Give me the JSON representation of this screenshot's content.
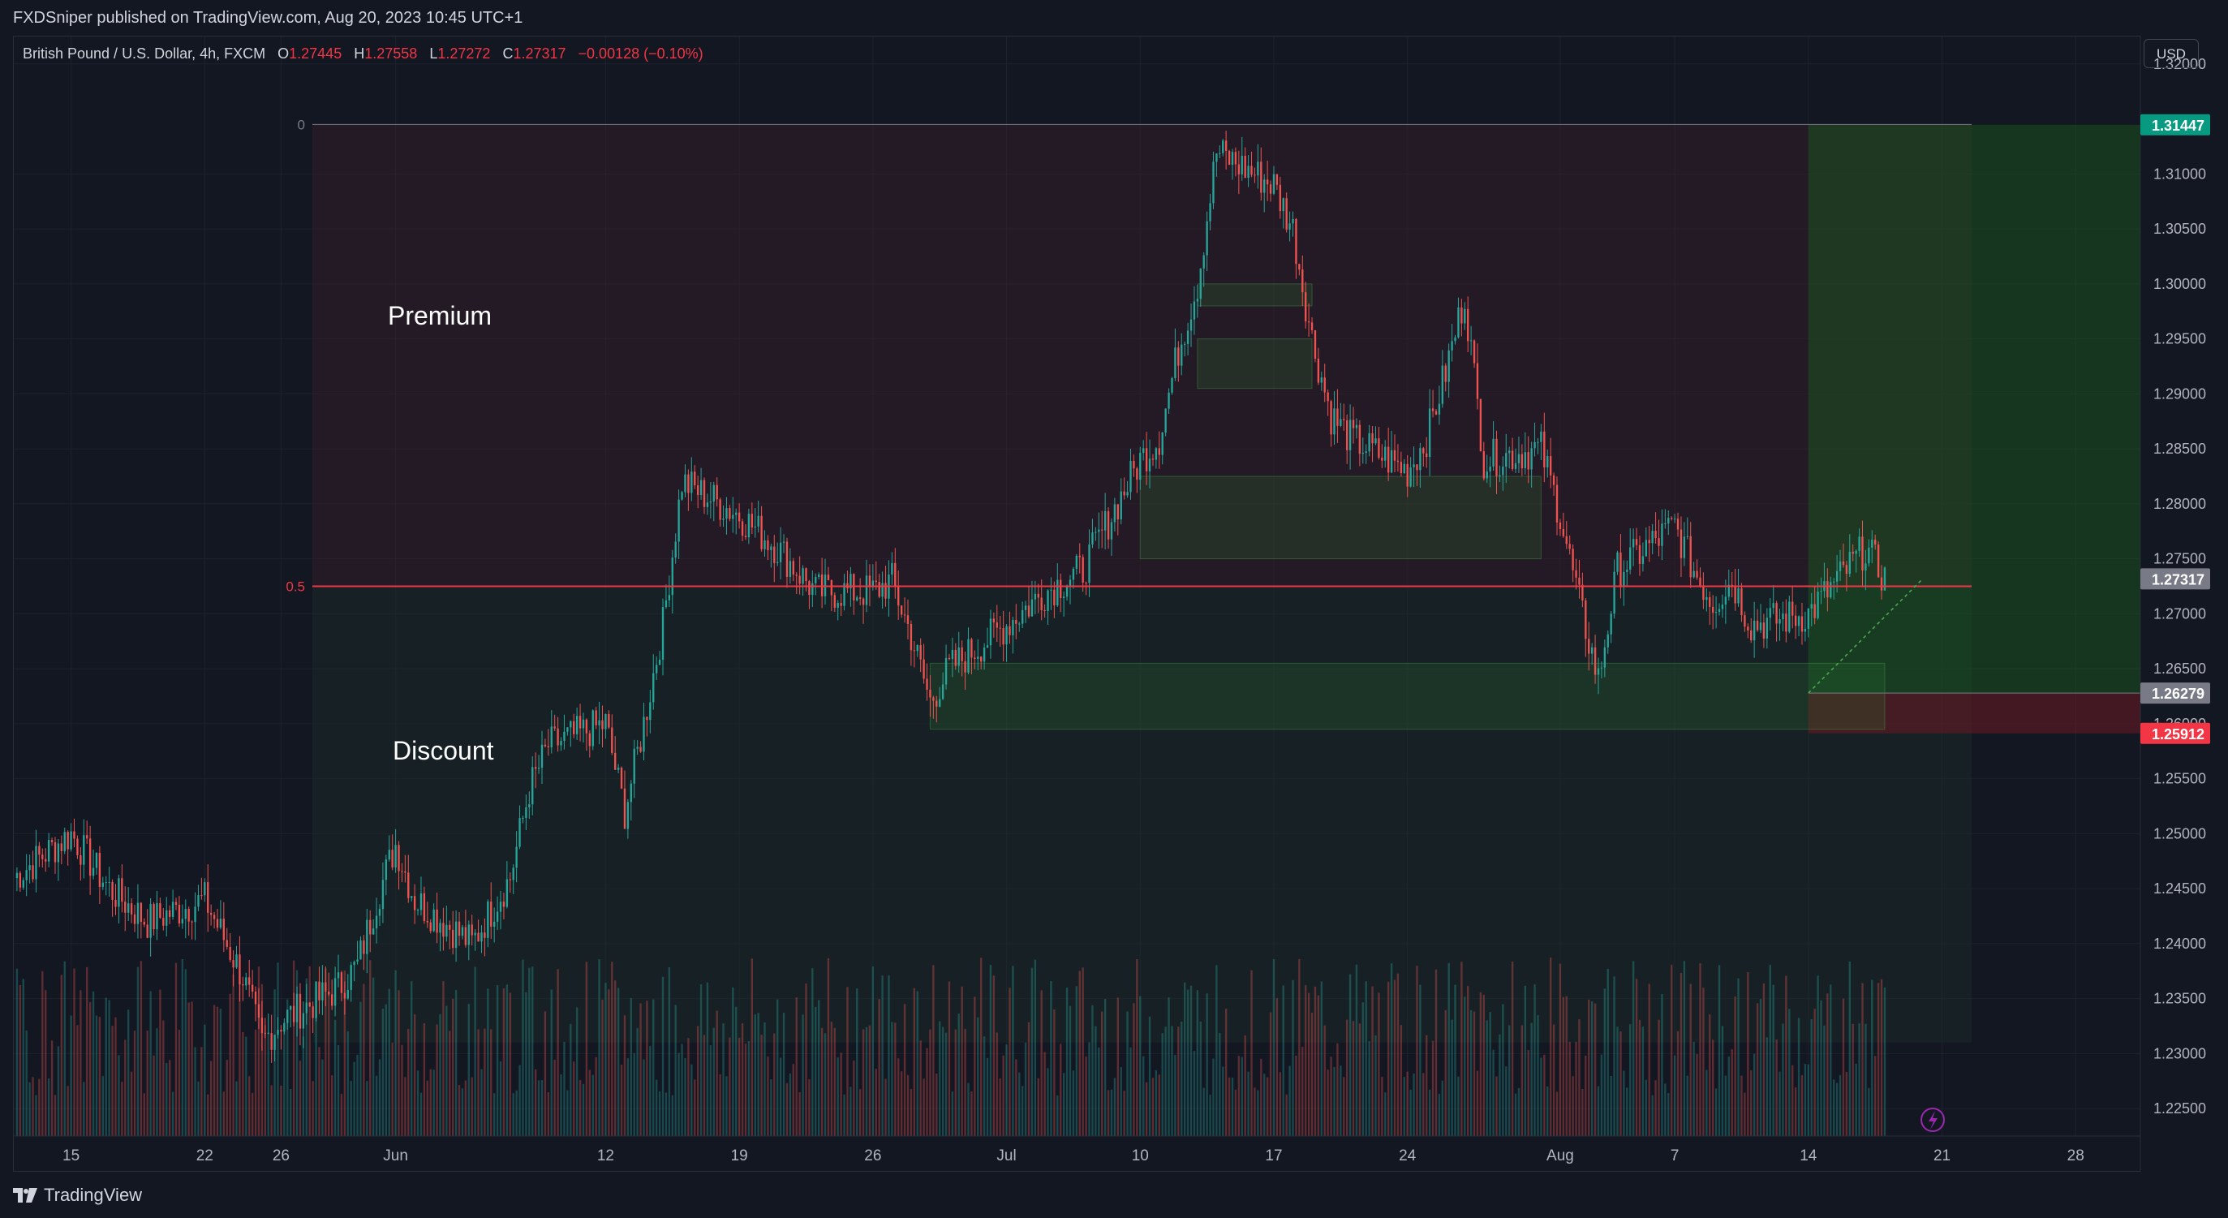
{
  "header": {
    "published_text": "FXDSniper published on TradingView.com, Aug 20, 2023 10:45 UTC+1"
  },
  "symbol": {
    "title": "British Pound / U.S. Dollar, 4h, FXCM",
    "open_label": "O",
    "open": "1.27445",
    "high_label": "H",
    "high": "1.27558",
    "low_label": "L",
    "low": "1.27272",
    "close_label": "C",
    "close": "1.27317",
    "change": "−0.00128 (−0.10%)"
  },
  "currency_button": "USD",
  "annotations": {
    "premium": "Premium",
    "discount": "Discount",
    "fib_top": "0",
    "fib_mid": "0.5"
  },
  "price_axis": {
    "ticks": [
      "1.32000",
      "1.31000",
      "1.30500",
      "1.30000",
      "1.29500",
      "1.29000",
      "1.28500",
      "1.28000",
      "1.27500",
      "1.27000",
      "1.26500",
      "1.26000",
      "1.25500",
      "1.25000",
      "1.24500",
      "1.24000",
      "1.23500",
      "1.23000",
      "1.22500"
    ],
    "badges": [
      {
        "label": "1.31447",
        "color": "#089981"
      },
      {
        "label": "1.27317",
        "color": "#787b86"
      },
      {
        "label": "1.26279",
        "color": "#787b86"
      },
      {
        "label": "1.25912",
        "color": "#f23645"
      }
    ]
  },
  "time_axis": {
    "labels": [
      "15",
      "22",
      "26",
      "Jun",
      "12",
      "19",
      "26",
      "Jul",
      "10",
      "17",
      "24",
      "Aug",
      "7",
      "14",
      "21",
      "28"
    ]
  },
  "footer": {
    "brand": "TradingView"
  },
  "colors": {
    "up": "#26a69a",
    "down": "#ef5350",
    "background": "#131722"
  },
  "chart_data": {
    "type": "candlestick",
    "symbol": "GBPUSD",
    "interval": "4h",
    "ylim": [
      1.2225,
      1.3225
    ],
    "x_start": "2023-05-12",
    "x_end": "2023-08-20",
    "price_path": [
      [
        "2023-05-12",
        1.246
      ],
      [
        "2023-05-15",
        1.25
      ],
      [
        "2023-05-17",
        1.245
      ],
      [
        "2023-05-19",
        1.242
      ],
      [
        "2023-05-22",
        1.244
      ],
      [
        "2023-05-24",
        1.237
      ],
      [
        "2023-05-25",
        1.231
      ],
      [
        "2023-05-26",
        1.233
      ],
      [
        "2023-05-29",
        1.236
      ],
      [
        "2023-05-30",
        1.238
      ],
      [
        "2023-05-31",
        1.244
      ],
      [
        "2023-06-01",
        1.249
      ],
      [
        "2023-06-02",
        1.244
      ],
      [
        "2023-06-05",
        1.24
      ],
      [
        "2023-06-06",
        1.243
      ],
      [
        "2023-06-07",
        1.246
      ],
      [
        "2023-06-08",
        1.254
      ],
      [
        "2023-06-09",
        1.258
      ],
      [
        "2023-06-12",
        1.26
      ],
      [
        "2023-06-13",
        1.252
      ],
      [
        "2023-06-14",
        1.26
      ],
      [
        "2023-06-15",
        1.269
      ],
      [
        "2023-06-16",
        1.282
      ],
      [
        "2023-06-19",
        1.279
      ],
      [
        "2023-06-21",
        1.276
      ],
      [
        "2023-06-23",
        1.272
      ],
      [
        "2023-06-26",
        1.272
      ],
      [
        "2023-06-27",
        1.273
      ],
      [
        "2023-06-28",
        1.268
      ],
      [
        "2023-06-29",
        1.262
      ],
      [
        "2023-06-30",
        1.265
      ],
      [
        "2023-07-03",
        1.269
      ],
      [
        "2023-07-05",
        1.272
      ],
      [
        "2023-07-07",
        1.274
      ],
      [
        "2023-07-10",
        1.284
      ],
      [
        "2023-07-11",
        1.286
      ],
      [
        "2023-07-12",
        1.294
      ],
      [
        "2023-07-13",
        1.3
      ],
      [
        "2023-07-14",
        1.312
      ],
      [
        "2023-07-17",
        1.309
      ],
      [
        "2023-07-18",
        1.305
      ],
      [
        "2023-07-19",
        1.295
      ],
      [
        "2023-07-20",
        1.288
      ],
      [
        "2023-07-21",
        1.286
      ],
      [
        "2023-07-24",
        1.283
      ],
      [
        "2023-07-25",
        1.286
      ],
      [
        "2023-07-26",
        1.292
      ],
      [
        "2023-07-27",
        1.299
      ],
      [
        "2023-07-28",
        1.284
      ],
      [
        "2023-07-31",
        1.285
      ],
      [
        "2023-08-01",
        1.279
      ],
      [
        "2023-08-02",
        1.271
      ],
      [
        "2023-08-03",
        1.264
      ],
      [
        "2023-08-04",
        1.274
      ],
      [
        "2023-08-07",
        1.278
      ],
      [
        "2023-08-08",
        1.274
      ],
      [
        "2023-08-09",
        1.271
      ],
      [
        "2023-08-10",
        1.273
      ],
      [
        "2023-08-11",
        1.269
      ],
      [
        "2023-08-14",
        1.27
      ],
      [
        "2023-08-15",
        1.272
      ],
      [
        "2023-08-16",
        1.274
      ],
      [
        "2023-08-17",
        1.276
      ],
      [
        "2023-08-18",
        1.2732
      ]
    ],
    "zones": [
      {
        "name": "Premium",
        "y": [
          1.2725,
          1.3145
        ]
      },
      {
        "name": "Discount",
        "y": [
          1.231,
          1.2725
        ]
      },
      {
        "name": "FVG",
        "x": [
          "2023-07-13",
          "2023-07-19"
        ],
        "y": [
          1.298,
          1.3
        ]
      },
      {
        "name": "FVG",
        "x": [
          "2023-07-13",
          "2023-07-19"
        ],
        "y": [
          1.2905,
          1.295
        ]
      },
      {
        "name": "FVG",
        "x": [
          "2023-07-10",
          "2023-07-31"
        ],
        "y": [
          1.275,
          1.2825
        ]
      },
      {
        "name": "FVG",
        "x": [
          "2023-06-29",
          "2023-08-18"
        ],
        "y": [
          1.2595,
          1.2655
        ]
      }
    ],
    "position": {
      "entry": 1.26279,
      "stop": 1.25912,
      "target": 1.31447,
      "start": "2023-08-14",
      "end": "2023-08-21"
    },
    "fib_levels": [
      {
        "label": "0",
        "value": 1.3145
      },
      {
        "label": "0.5",
        "value": 1.2725
      }
    ],
    "current_price": 1.27317,
    "grid": true
  }
}
